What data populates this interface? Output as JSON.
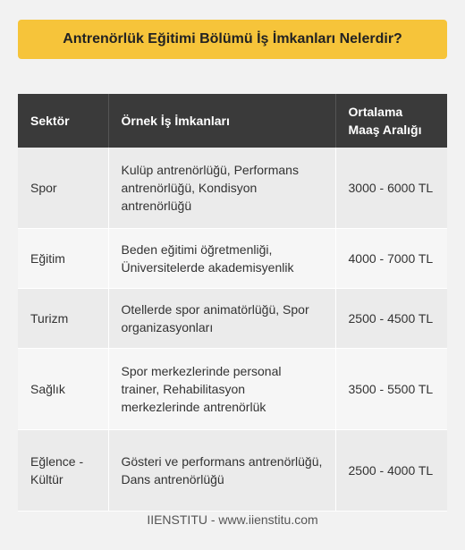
{
  "title": "Antrenörlük Eğitimi Bölümü İş İmkanları Nelerdir?",
  "table": {
    "headers": [
      "Sektör",
      "Örnek İş İmkanları",
      "Ortalama Maaş Aralığı"
    ],
    "rows": [
      {
        "sector": "Spor",
        "jobs": "Kulüp antrenörlüğü, Performans antrenörlüğü, Kondisyon antrenörlüğü",
        "salary": "3000 - 6000 TL"
      },
      {
        "sector": "Eğitim",
        "jobs": "Beden eğitimi öğretmenliği, Üniversitelerde akademisyenlik",
        "salary": "4000 - 7000 TL"
      },
      {
        "sector": "Turizm",
        "jobs": "Otellerde spor animatörlüğü, Spor organizasyonları",
        "salary": "2500 - 4500 TL"
      },
      {
        "sector": "Sağlık",
        "jobs": "Spor merkezlerinde personal trainer, Rehabilitasyon merkezlerinde antrenörlük",
        "salary": "3500 - 5500 TL"
      },
      {
        "sector": "Eğlence - Kültür",
        "jobs": "Gösteri ve performans antrenörlüğü, Dans antrenörlüğü",
        "salary": "2500 - 4000 TL"
      }
    ]
  },
  "footer": "IIENSTITU - www.iienstitu.com"
}
